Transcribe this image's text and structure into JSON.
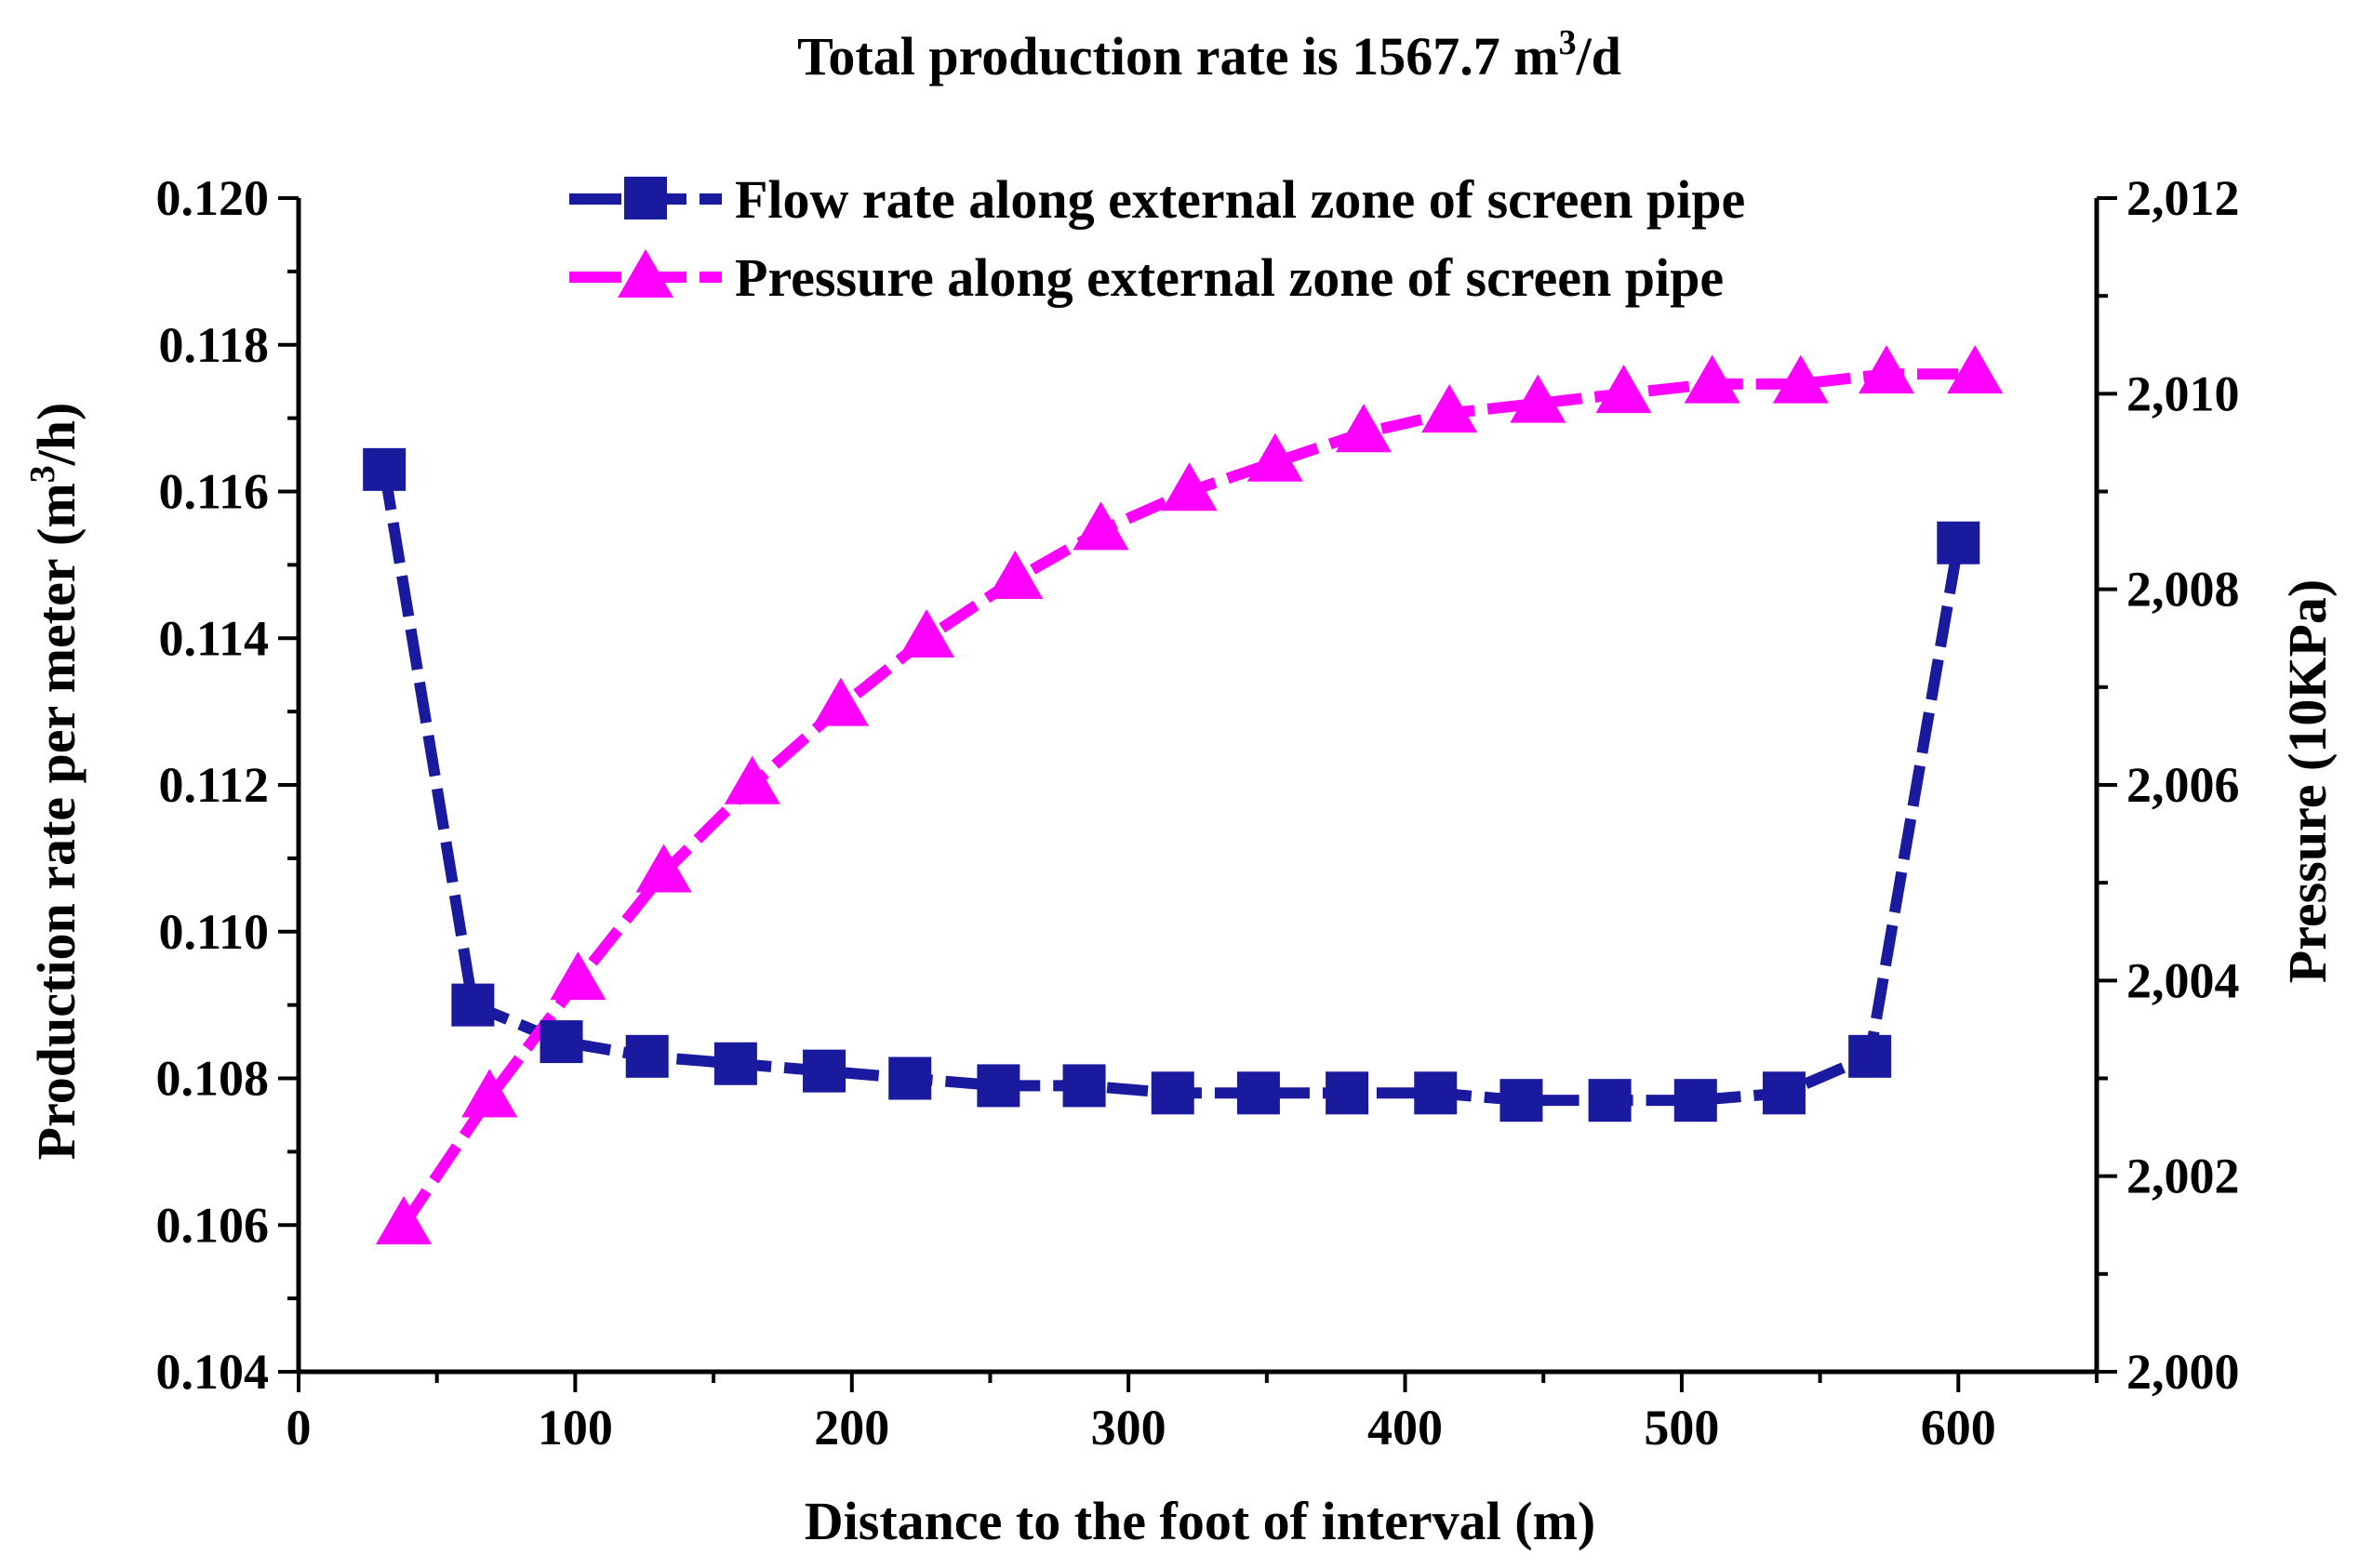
{
  "chart_data": {
    "type": "line",
    "title": "Total production rate is 1567.7 m3/d",
    "title_parts": {
      "main": "Total production rate is 1567.7 m",
      "sup": "3",
      "tail": "/d"
    },
    "xlabel": "Distance to the foot of interval (m)",
    "ylabel_left_parts": {
      "main": "Production rate per meter (m",
      "sup": "3",
      "tail": "/h)"
    },
    "ylabel_right": "Pressure (10KPa)",
    "xlim": [
      0,
      650
    ],
    "xticks": [
      0,
      100,
      200,
      300,
      400,
      500,
      600
    ],
    "xtick_labels": [
      "0",
      "100",
      "200",
      "300",
      "400",
      "500",
      "600"
    ],
    "ylim_left": [
      0.104,
      0.12
    ],
    "yticks_left": [
      0.104,
      0.106,
      0.108,
      0.11,
      0.112,
      0.114,
      0.116,
      0.118,
      0.12
    ],
    "ytick_labels_left": [
      "0.104",
      "0.106",
      "0.108",
      "0.110",
      "0.112",
      "0.114",
      "0.116",
      "0.118",
      "0.120"
    ],
    "ylim_right": [
      2000,
      2012
    ],
    "yticks_right": [
      2000,
      2002,
      2004,
      2006,
      2008,
      2010,
      2012
    ],
    "ytick_labels_right": [
      "2,000",
      "2,002",
      "2,004",
      "2,006",
      "2,008",
      "2,010",
      "2,012"
    ],
    "legend": [
      "Flow rate along external zone of screen pipe",
      "Pressure along external zone of screen pipe"
    ],
    "series": [
      {
        "name": "Flow rate along external zone of screen pipe",
        "axis": "left",
        "color": "#1a1a9e",
        "marker": "square",
        "x": [
          31,
          63,
          95,
          126,
          158,
          190,
          221,
          253,
          284,
          316,
          347,
          379,
          411,
          442,
          474,
          505,
          537,
          568,
          600
        ],
        "y": [
          0.1163,
          0.109,
          0.1085,
          0.1083,
          0.1082,
          0.1081,
          0.108,
          0.1079,
          0.1079,
          0.1078,
          0.1078,
          0.1078,
          0.1078,
          0.1077,
          0.1077,
          0.1077,
          0.1078,
          0.1083,
          0.1153
        ]
      },
      {
        "name": "Pressure along external zone of screen pipe",
        "axis": "right",
        "color": "#ff00ff",
        "marker": "triangle",
        "x": [
          38,
          69,
          101,
          132,
          164,
          196,
          227,
          259,
          290,
          322,
          353,
          385,
          416,
          448,
          479,
          511,
          543,
          574,
          606
        ],
        "y": [
          2001.5,
          2002.8,
          2004.0,
          2005.1,
          2006.0,
          2006.8,
          2007.5,
          2008.1,
          2008.6,
          2009.0,
          2009.3,
          2009.6,
          2009.8,
          2009.9,
          2010.0,
          2010.1,
          2010.1,
          2010.2,
          2010.2
        ]
      }
    ]
  }
}
